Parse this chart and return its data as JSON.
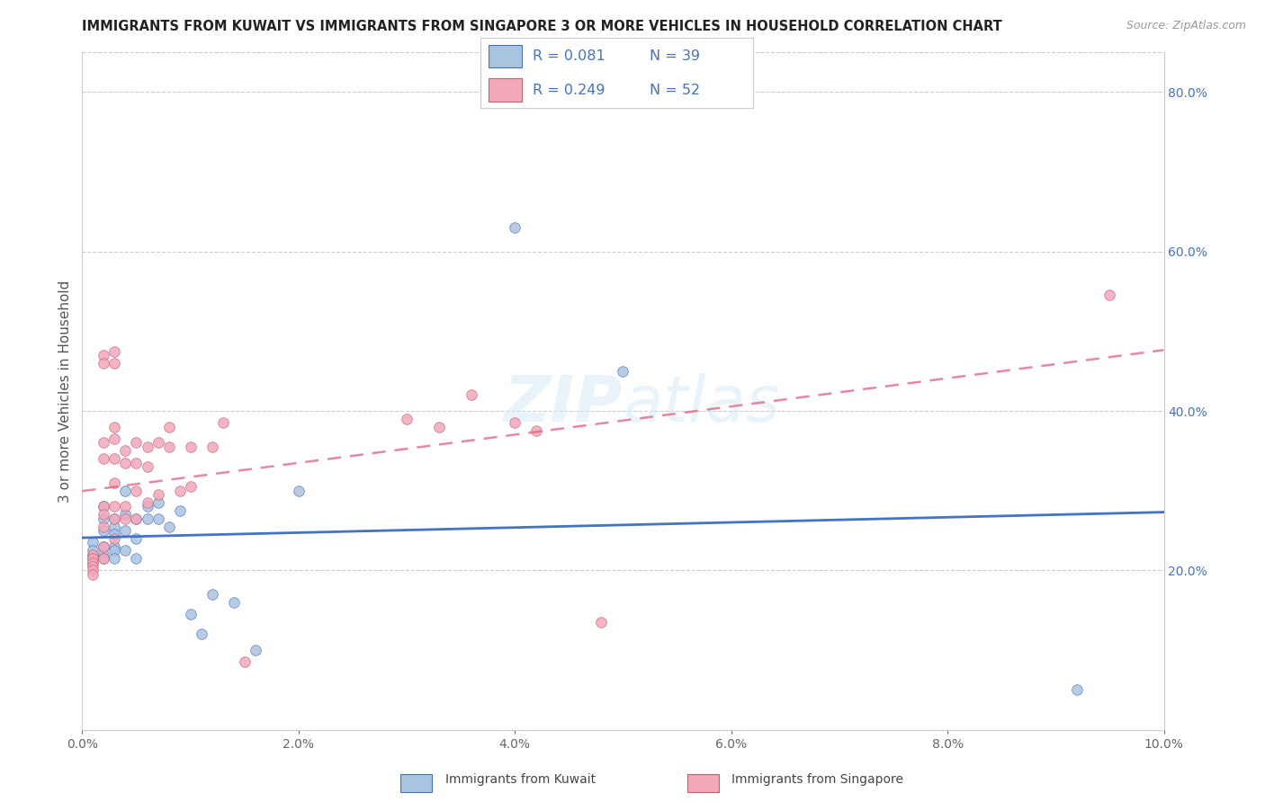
{
  "title": "IMMIGRANTS FROM KUWAIT VS IMMIGRANTS FROM SINGAPORE 3 OR MORE VEHICLES IN HOUSEHOLD CORRELATION CHART",
  "source": "Source: ZipAtlas.com",
  "ylabel": "3 or more Vehicles in Household",
  "xlim": [
    0.0,
    0.1
  ],
  "ylim": [
    0.0,
    0.85
  ],
  "color_kuwait": "#a8c4e0",
  "color_singapore": "#f4a7b9",
  "color_kuwait_line": "#4472c4",
  "color_singapore_line": "#e06080",
  "color_text_blue": "#4472c4",
  "watermark": "ZIPatlas",
  "kuwait_x": [
    0.001,
    0.001,
    0.001,
    0.001,
    0.001,
    0.002,
    0.002,
    0.002,
    0.002,
    0.002,
    0.002,
    0.003,
    0.003,
    0.003,
    0.003,
    0.003,
    0.003,
    0.004,
    0.004,
    0.004,
    0.004,
    0.005,
    0.005,
    0.005,
    0.006,
    0.006,
    0.007,
    0.007,
    0.008,
    0.009,
    0.01,
    0.011,
    0.012,
    0.014,
    0.016,
    0.02,
    0.04,
    0.092,
    0.05
  ],
  "kuwait_y": [
    0.235,
    0.22,
    0.215,
    0.225,
    0.21,
    0.28,
    0.265,
    0.25,
    0.23,
    0.22,
    0.215,
    0.265,
    0.255,
    0.245,
    0.23,
    0.225,
    0.215,
    0.3,
    0.27,
    0.25,
    0.225,
    0.265,
    0.24,
    0.215,
    0.28,
    0.265,
    0.285,
    0.265,
    0.255,
    0.275,
    0.145,
    0.12,
    0.17,
    0.16,
    0.1,
    0.3,
    0.63,
    0.05,
    0.45
  ],
  "singapore_x": [
    0.001,
    0.001,
    0.001,
    0.001,
    0.001,
    0.001,
    0.002,
    0.002,
    0.002,
    0.002,
    0.002,
    0.002,
    0.002,
    0.002,
    0.002,
    0.003,
    0.003,
    0.003,
    0.003,
    0.003,
    0.003,
    0.003,
    0.003,
    0.003,
    0.004,
    0.004,
    0.004,
    0.004,
    0.005,
    0.005,
    0.005,
    0.005,
    0.006,
    0.006,
    0.006,
    0.007,
    0.007,
    0.008,
    0.008,
    0.009,
    0.01,
    0.01,
    0.012,
    0.013,
    0.015,
    0.03,
    0.033,
    0.036,
    0.04,
    0.042,
    0.048,
    0.095
  ],
  "singapore_y": [
    0.22,
    0.215,
    0.21,
    0.205,
    0.2,
    0.195,
    0.47,
    0.46,
    0.36,
    0.34,
    0.28,
    0.27,
    0.255,
    0.23,
    0.215,
    0.475,
    0.46,
    0.38,
    0.365,
    0.34,
    0.31,
    0.28,
    0.265,
    0.24,
    0.35,
    0.335,
    0.28,
    0.265,
    0.36,
    0.335,
    0.3,
    0.265,
    0.355,
    0.33,
    0.285,
    0.36,
    0.295,
    0.38,
    0.355,
    0.3,
    0.355,
    0.305,
    0.355,
    0.385,
    0.085,
    0.39,
    0.38,
    0.42,
    0.385,
    0.375,
    0.135,
    0.545
  ]
}
